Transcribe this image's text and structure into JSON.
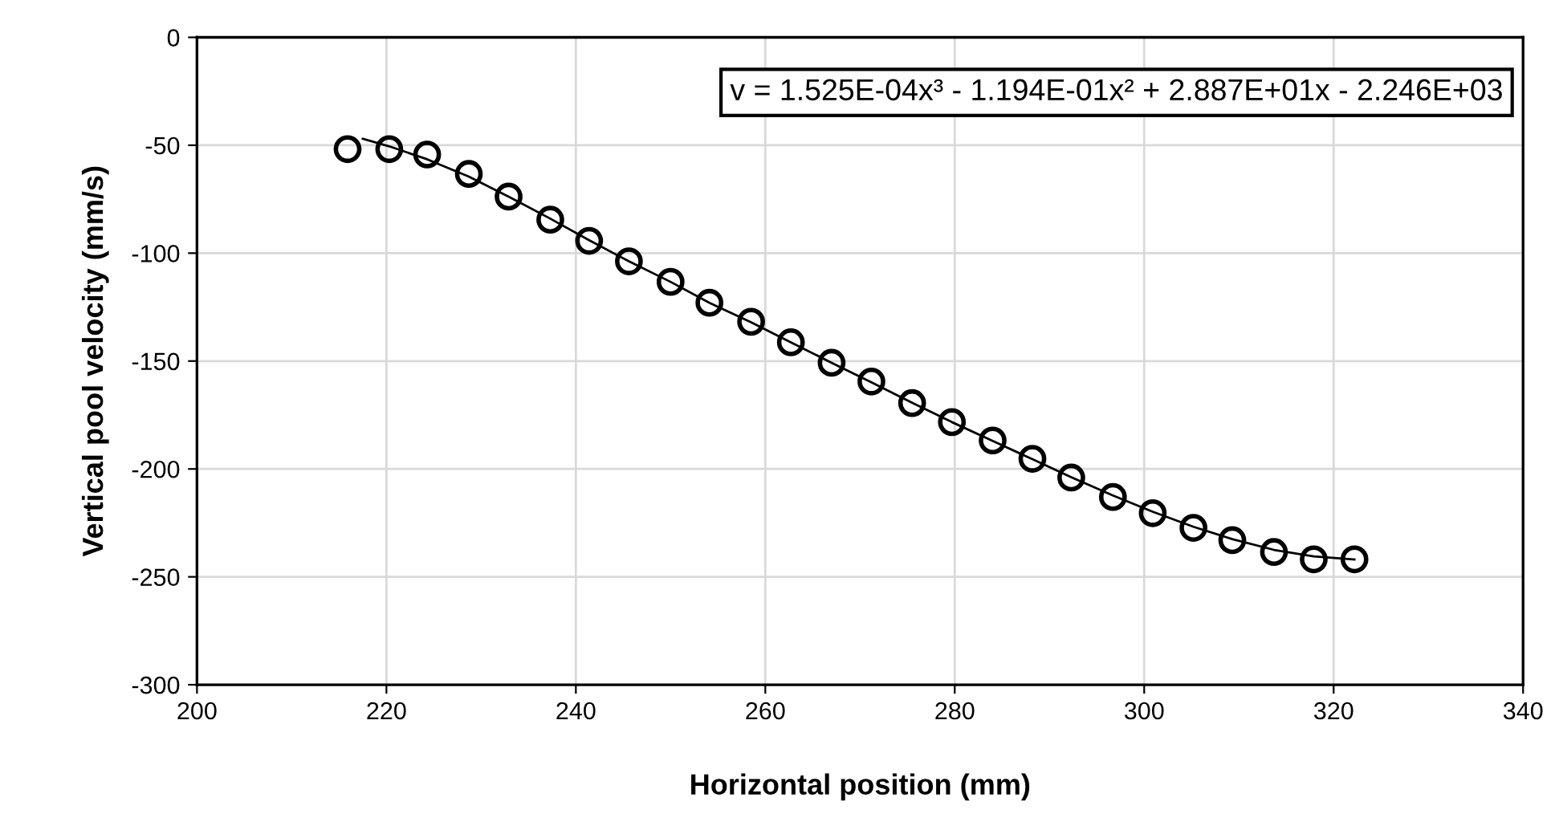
{
  "chart_data": {
    "type": "scatter",
    "xlabel": "Horizontal position (mm)",
    "ylabel": "Vertical pool velocity (mm/s)",
    "annotations": [
      "v = 1.525E-04x³ - 1.194E-01x² + 2.887E+01x - 2.246E+03"
    ],
    "xlim": [
      200,
      340
    ],
    "xticks": [
      200,
      220,
      240,
      260,
      280,
      300,
      320,
      340
    ],
    "ylim": [
      -300,
      0
    ],
    "yticks": [
      -300,
      -250,
      -200,
      -150,
      -100,
      -50,
      0
    ],
    "grid": true,
    "legend": false,
    "marker": "circle",
    "series": [
      {
        "color": "#000000",
        "x": [
          215.9,
          220.3,
          224.3,
          228.7,
          232.9,
          237.3,
          241.4,
          245.6,
          250.0,
          254.1,
          258.5,
          262.7,
          267.0,
          271.2,
          275.5,
          279.7,
          284.0,
          288.2,
          292.3,
          296.7,
          300.9,
          305.2,
          309.3,
          313.7,
          317.9,
          322.2
        ],
        "values": [
          -51.8,
          -51.8,
          -54.3,
          -63.3,
          -73.8,
          -84.5,
          -94.3,
          -103.8,
          -113.3,
          -123.0,
          -131.8,
          -141.3,
          -150.8,
          -159.5,
          -169.5,
          -178.3,
          -186.8,
          -195.3,
          -204.0,
          -213.0,
          -220.5,
          -227.3,
          -233.0,
          -238.5,
          -241.9,
          -241.9
        ]
      },
      {
        "type": "line",
        "color": "#000000",
        "marker": "none",
        "line_style": "solid",
        "x": [
          217.5,
          220.3,
          224.3,
          228.7,
          232.9,
          237.3,
          241.4,
          245.6,
          250.0,
          254.1,
          258.5,
          262.7,
          267.0,
          271.2,
          275.5,
          279.7,
          284.0,
          288.2,
          292.3,
          296.7,
          300.9,
          305.2,
          309.3,
          313.7,
          317.9,
          322.2
        ],
        "values": [
          -47.0,
          -50.5,
          -56.5,
          -64.5,
          -73.8,
          -84.0,
          -94.0,
          -103.8,
          -113.3,
          -123.0,
          -132.0,
          -141.3,
          -150.8,
          -159.8,
          -169.3,
          -178.3,
          -187.0,
          -195.5,
          -203.8,
          -212.3,
          -219.8,
          -226.8,
          -232.5,
          -237.5,
          -240.5,
          -242.0
        ]
      }
    ]
  }
}
